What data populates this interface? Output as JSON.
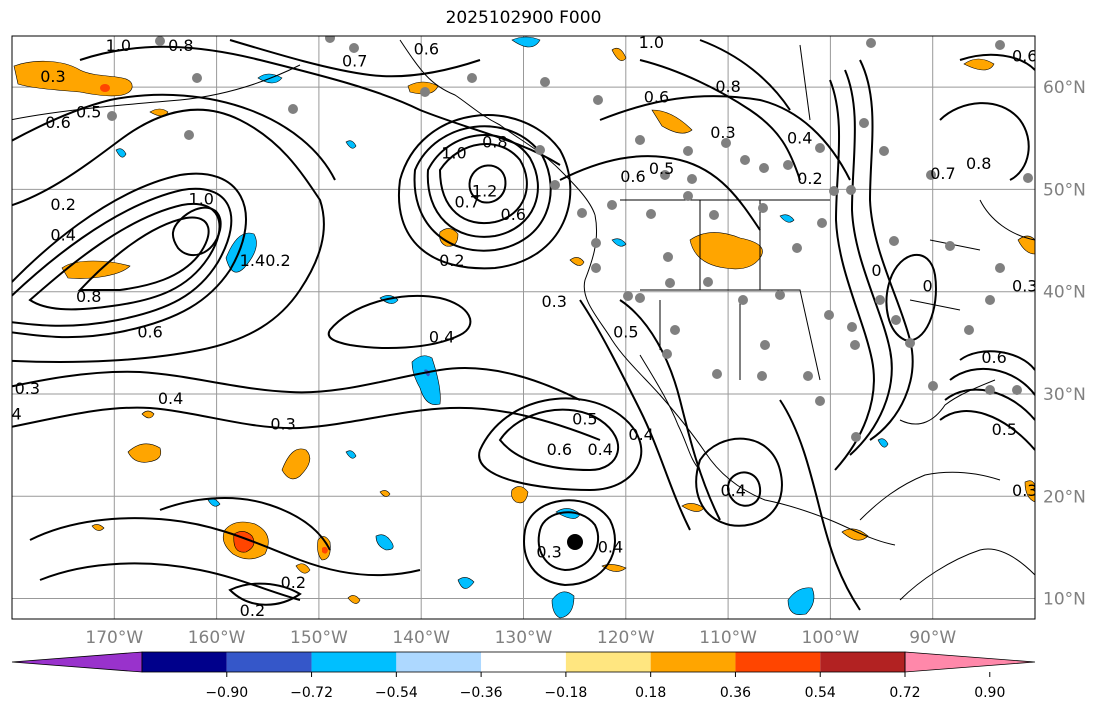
{
  "title": "2025102900 F000",
  "map": {
    "lon_range": [
      -180,
      -80
    ],
    "lat_range": [
      8,
      65
    ],
    "lon_ticks": [
      {
        "value": -170,
        "label": "170°W"
      },
      {
        "value": -160,
        "label": "160°W"
      },
      {
        "value": -150,
        "label": "150°W"
      },
      {
        "value": -140,
        "label": "140°W"
      },
      {
        "value": -130,
        "label": "130°W"
      },
      {
        "value": -120,
        "label": "120°W"
      },
      {
        "value": -110,
        "label": "110°W"
      },
      {
        "value": -100,
        "label": "100°W"
      },
      {
        "value": -90,
        "label": "90°W"
      }
    ],
    "lat_ticks": [
      {
        "value": 60,
        "label": "60°N"
      },
      {
        "value": 50,
        "label": "50°N"
      },
      {
        "value": 40,
        "label": "40°N"
      },
      {
        "value": 30,
        "label": "30°N"
      },
      {
        "value": 20,
        "label": "20°N"
      },
      {
        "value": 10,
        "label": "10°N"
      }
    ],
    "grid": true,
    "contour_labels": [
      {
        "text": "1.0",
        "lon": -169.6,
        "lat": 64.0
      },
      {
        "text": "0.8",
        "lon": -163.5,
        "lat": 64.0
      },
      {
        "text": "0.7",
        "lon": -146.5,
        "lat": 62.5
      },
      {
        "text": "0.6",
        "lon": -139.5,
        "lat": 63.7
      },
      {
        "text": "1.0",
        "lon": -117.5,
        "lat": 64.3
      },
      {
        "text": "0.8",
        "lon": -110.0,
        "lat": 60.0
      },
      {
        "text": "0.6",
        "lon": -117.0,
        "lat": 59.0
      },
      {
        "text": "0.3",
        "lon": -110.5,
        "lat": 55.5
      },
      {
        "text": "0.4",
        "lon": -103.0,
        "lat": 55.0
      },
      {
        "text": "0.2",
        "lon": -102.0,
        "lat": 51.0
      },
      {
        "text": "0.5",
        "lon": -116.5,
        "lat": 52.0
      },
      {
        "text": "0.6",
        "lon": -119.3,
        "lat": 51.2
      },
      {
        "text": "0.3",
        "lon": -176.0,
        "lat": 61.0
      },
      {
        "text": "0.5",
        "lon": -172.5,
        "lat": 57.5
      },
      {
        "text": "0.6",
        "lon": -175.5,
        "lat": 56.5
      },
      {
        "text": "0.2",
        "lon": -175.0,
        "lat": 48.5
      },
      {
        "text": "0.4",
        "lon": -175.0,
        "lat": 45.5
      },
      {
        "text": "0.8",
        "lon": -172.5,
        "lat": 39.5
      },
      {
        "text": "0.6",
        "lon": -166.5,
        "lat": 36.0
      },
      {
        "text": "1.0",
        "lon": -161.5,
        "lat": 49.0
      },
      {
        "text": "1.4",
        "lon": -156.5,
        "lat": 43.0
      },
      {
        "text": "0.2",
        "lon": -154.0,
        "lat": 43.0
      },
      {
        "text": "1.0",
        "lon": -136.8,
        "lat": 53.5
      },
      {
        "text": "1.2",
        "lon": -133.8,
        "lat": 49.8
      },
      {
        "text": "0.8",
        "lon": -132.8,
        "lat": 54.6
      },
      {
        "text": "0.7",
        "lon": -135.5,
        "lat": 48.7
      },
      {
        "text": "0.6",
        "lon": -131.0,
        "lat": 47.5
      },
      {
        "text": "0.2",
        "lon": -137.0,
        "lat": 43.0
      },
      {
        "text": "0.3",
        "lon": -178.5,
        "lat": 30.5
      },
      {
        "text": ".4",
        "lon": -179.8,
        "lat": 28.0
      },
      {
        "text": "0.4",
        "lon": -164.5,
        "lat": 29.5
      },
      {
        "text": "0.3",
        "lon": -153.5,
        "lat": 27.0
      },
      {
        "text": "0.4",
        "lon": -138.0,
        "lat": 35.5
      },
      {
        "text": "0.3",
        "lon": -127.0,
        "lat": 39.0
      },
      {
        "text": "0.5",
        "lon": -124.0,
        "lat": 27.5
      },
      {
        "text": "0.6",
        "lon": -126.5,
        "lat": 24.5
      },
      {
        "text": "0.4",
        "lon": -122.5,
        "lat": 24.5
      },
      {
        "text": "0.5",
        "lon": -120.0,
        "lat": 36.0
      },
      {
        "text": "0.4",
        "lon": -118.5,
        "lat": 26.0
      },
      {
        "text": "0.2",
        "lon": -152.5,
        "lat": 11.5
      },
      {
        "text": "0.2",
        "lon": -156.5,
        "lat": 8.8
      },
      {
        "text": "0.4",
        "lon": -109.5,
        "lat": 20.5
      },
      {
        "text": "0.4",
        "lon": -121.5,
        "lat": 15.0
      },
      {
        "text": "0.3",
        "lon": -127.5,
        "lat": 14.5
      },
      {
        "text": "0.7",
        "lon": -89.0,
        "lat": 51.5
      },
      {
        "text": "0.8",
        "lon": -85.5,
        "lat": 52.5
      },
      {
        "text": "0.6",
        "lon": -81.0,
        "lat": 63.0
      },
      {
        "text": "0.6",
        "lon": -84.0,
        "lat": 33.5
      },
      {
        "text": "0.3",
        "lon": -81.0,
        "lat": 40.5
      },
      {
        "text": "0.5",
        "lon": -83.0,
        "lat": 26.5
      },
      {
        "text": "0.3",
        "lon": -81.0,
        "lat": 20.5
      },
      {
        "text": "0",
        "lon": -95.5,
        "lat": 42.0
      },
      {
        "text": "0",
        "lon": -90.5,
        "lat": 40.5
      }
    ]
  },
  "colorbar": {
    "labels": [
      "−0.90",
      "−0.72",
      "−0.54",
      "−0.36",
      "−0.18",
      "0.18",
      "0.36",
      "0.54",
      "0.72",
      "0.90"
    ],
    "colors": [
      "#9932cc",
      "#00008b",
      "#3557c9",
      "#00bfff",
      "#add8ff",
      "#ffffff",
      "#ffe680",
      "#ffa500",
      "#ff4500",
      "#b22222",
      "#ff88aa"
    ]
  }
}
